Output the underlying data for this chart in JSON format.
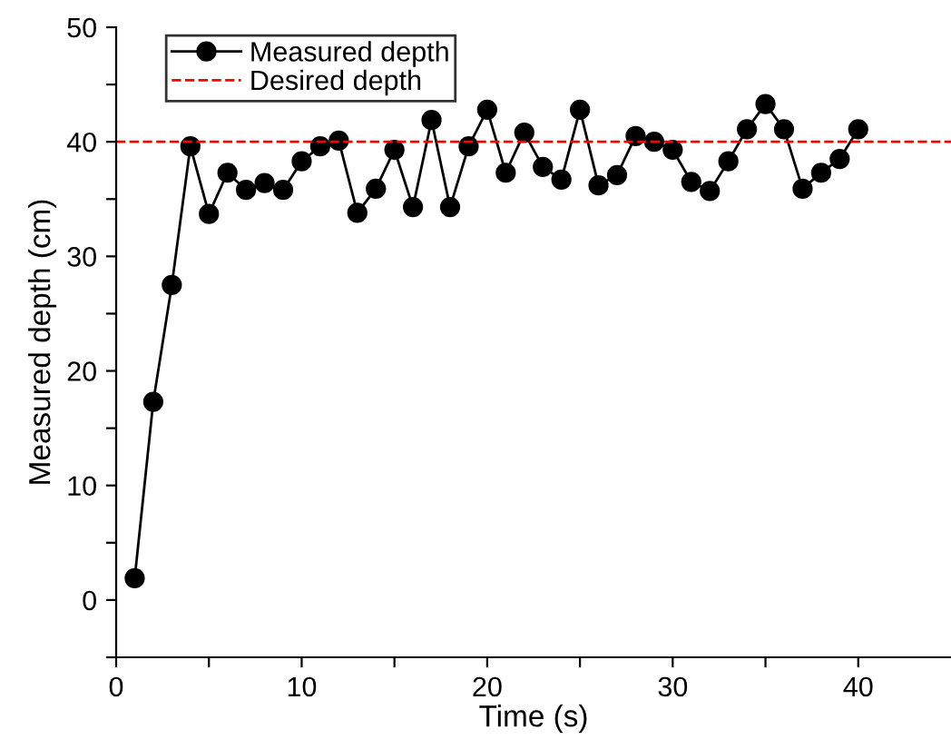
{
  "chart_data": {
    "type": "line",
    "xlabel": "Time (s)",
    "ylabel": "Measured depth (cm)",
    "x": [
      1,
      2,
      3,
      4,
      5,
      6,
      7,
      8,
      9,
      10,
      11,
      12,
      13,
      14,
      15,
      16,
      17,
      18,
      19,
      20,
      21,
      22,
      23,
      24,
      25,
      26,
      27,
      28,
      29,
      30,
      31,
      32,
      33,
      34,
      35,
      36,
      37,
      38,
      39,
      40
    ],
    "series": [
      {
        "name": "Measured depth",
        "color": "#000000",
        "values": [
          1.9,
          17.3,
          27.5,
          39.6,
          33.7,
          37.3,
          35.8,
          36.4,
          35.8,
          38.3,
          39.6,
          40.1,
          33.8,
          35.9,
          39.3,
          34.3,
          41.9,
          34.3,
          39.6,
          42.8,
          37.3,
          40.8,
          37.8,
          36.7,
          42.8,
          36.2,
          37.1,
          40.5,
          40.0,
          39.3,
          36.5,
          35.7,
          38.3,
          41.1,
          43.3,
          41.1,
          35.9,
          37.3,
          38.5,
          41.1
        ]
      }
    ],
    "ref_lines": [
      {
        "axis": "y",
        "value": 40,
        "label": "Desired depth",
        "color": "#ff0000",
        "line_style": "dashed"
      }
    ],
    "marker": "circle",
    "line_style": "solid",
    "legend": "top left",
    "grid": false,
    "xlim": [
      0,
      45
    ],
    "ylim": [
      -5,
      50
    ],
    "xticks": [
      0,
      {
        "value": 5,
        "label": null
      },
      10,
      {
        "value": 15,
        "label": null
      },
      20,
      {
        "value": 25,
        "label": null
      },
      30,
      {
        "value": 35,
        "label": null
      },
      40
    ],
    "yticks": [
      {
        "value": -5,
        "label": null
      },
      0,
      {
        "value": 5,
        "label": null
      },
      10,
      {
        "value": 15,
        "label": null
      },
      20,
      {
        "value": 25,
        "label": null
      },
      30,
      {
        "value": 35,
        "label": null
      },
      40,
      {
        "value": 45,
        "label": null
      },
      50
    ]
  }
}
